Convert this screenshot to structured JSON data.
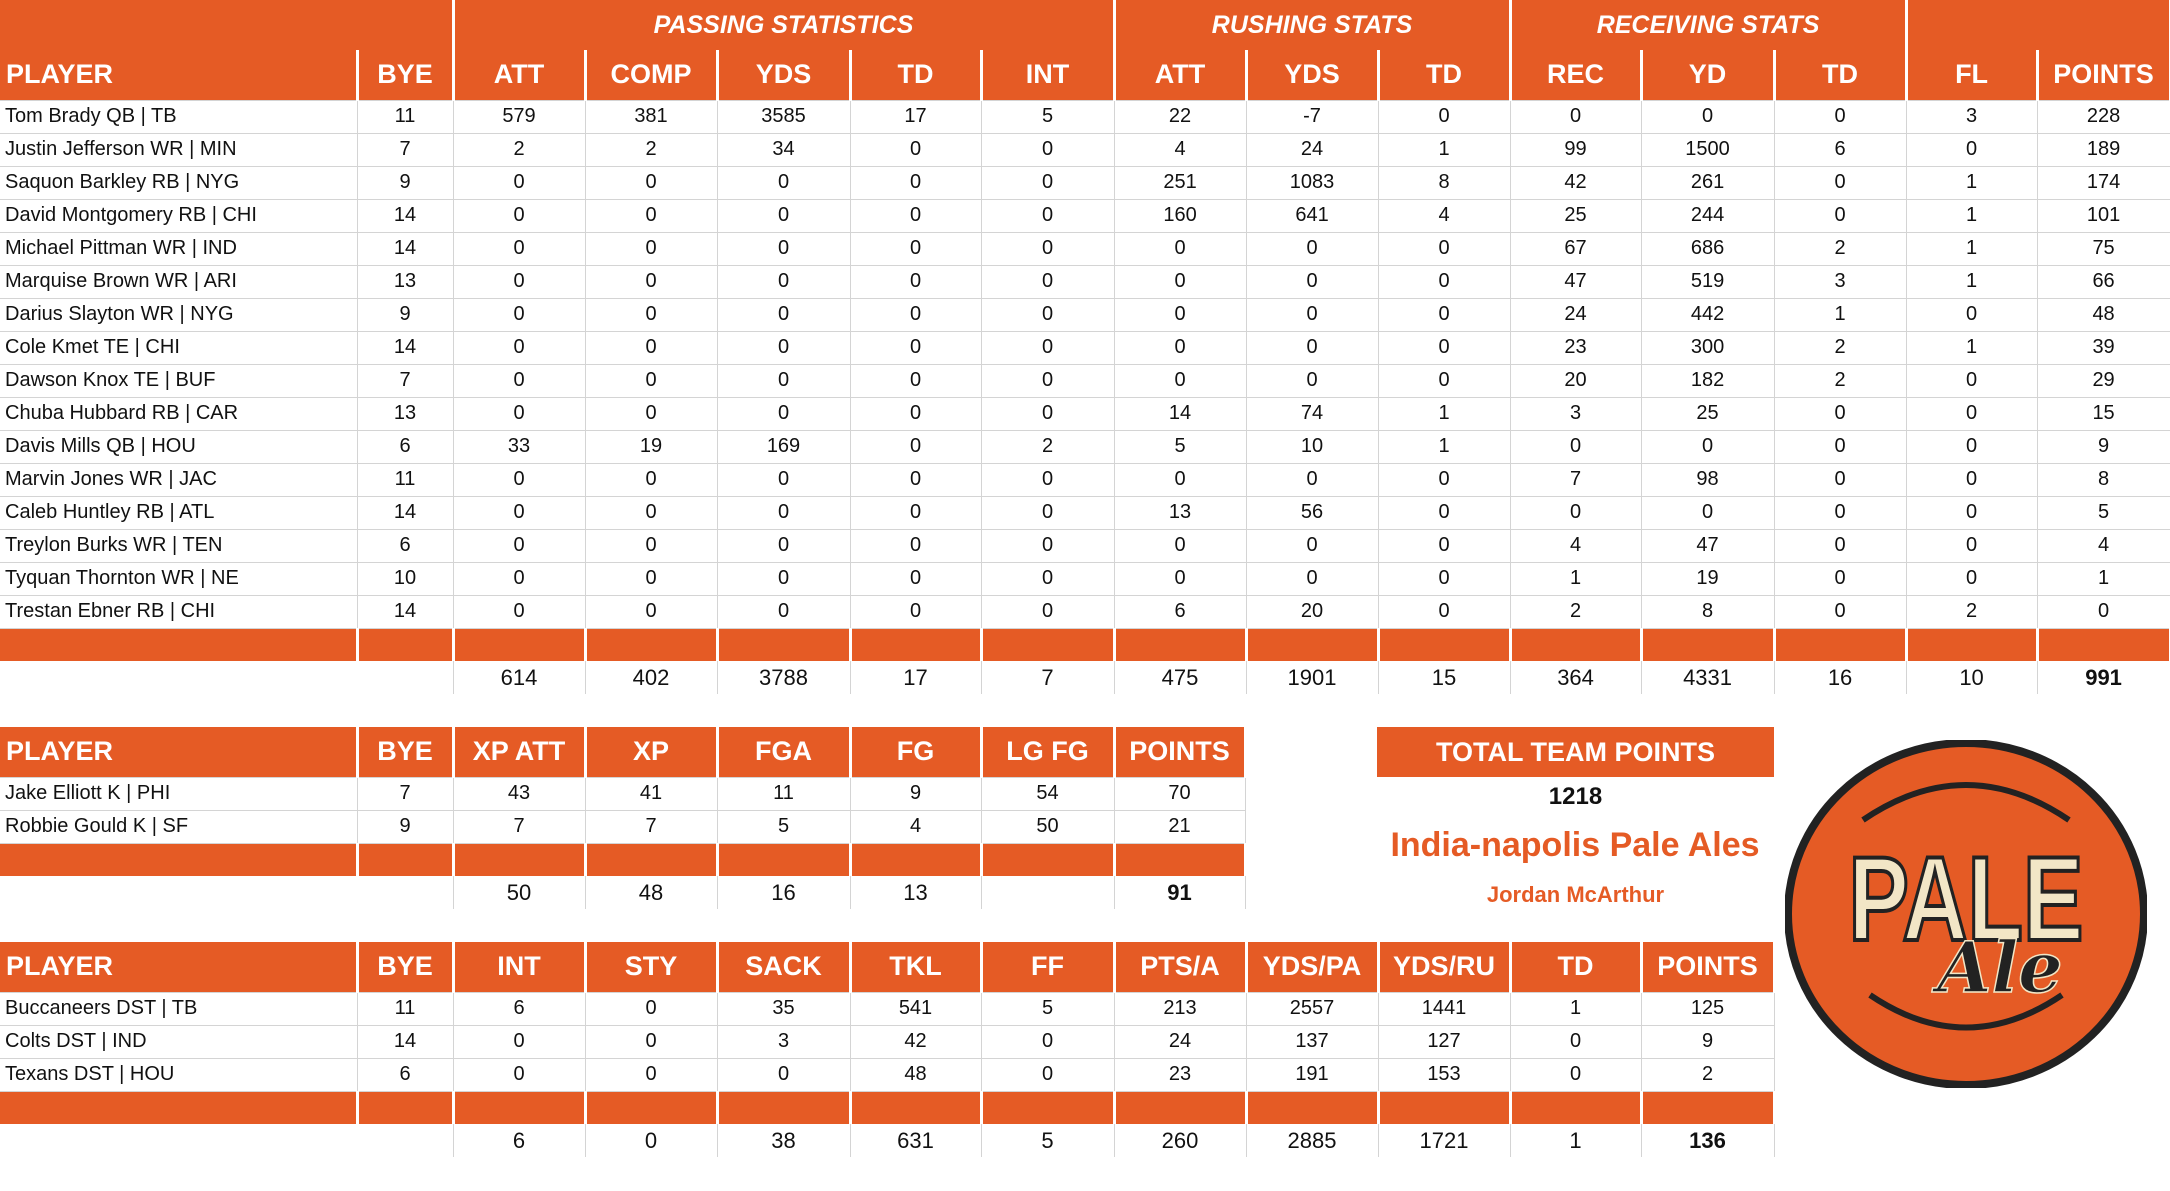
{
  "colors": {
    "accent": "#E55B25",
    "grid": "#d4d4d4",
    "text": "#111111"
  },
  "offense": {
    "groups": [
      {
        "label": "",
        "span": 2
      },
      {
        "label": "PASSING STATISTICS",
        "span": 5
      },
      {
        "label": "RUSHING STATS",
        "span": 3
      },
      {
        "label": "RECEIVING STATS",
        "span": 3
      },
      {
        "label": "",
        "span": 2
      }
    ],
    "columns": [
      "PLAYER",
      "BYE",
      "ATT",
      "COMP",
      "YDS",
      "TD",
      "INT",
      "ATT",
      "YDS",
      "TD",
      "REC",
      "YD",
      "TD",
      "FL",
      "POINTS"
    ],
    "rows": [
      [
        "Tom Brady QB | TB",
        "11",
        "579",
        "381",
        "3585",
        "17",
        "5",
        "22",
        "-7",
        "0",
        "0",
        "0",
        "0",
        "3",
        "228"
      ],
      [
        "Justin Jefferson WR | MIN",
        "7",
        "2",
        "2",
        "34",
        "0",
        "0",
        "4",
        "24",
        "1",
        "99",
        "1500",
        "6",
        "0",
        "189"
      ],
      [
        "Saquon Barkley RB | NYG",
        "9",
        "0",
        "0",
        "0",
        "0",
        "0",
        "251",
        "1083",
        "8",
        "42",
        "261",
        "0",
        "1",
        "174"
      ],
      [
        "David Montgomery RB | CHI",
        "14",
        "0",
        "0",
        "0",
        "0",
        "0",
        "160",
        "641",
        "4",
        "25",
        "244",
        "0",
        "1",
        "101"
      ],
      [
        "Michael Pittman WR | IND",
        "14",
        "0",
        "0",
        "0",
        "0",
        "0",
        "0",
        "0",
        "0",
        "67",
        "686",
        "2",
        "1",
        "75"
      ],
      [
        "Marquise Brown WR | ARI",
        "13",
        "0",
        "0",
        "0",
        "0",
        "0",
        "0",
        "0",
        "0",
        "47",
        "519",
        "3",
        "1",
        "66"
      ],
      [
        "Darius Slayton WR | NYG",
        "9",
        "0",
        "0",
        "0",
        "0",
        "0",
        "0",
        "0",
        "0",
        "24",
        "442",
        "1",
        "0",
        "48"
      ],
      [
        "Cole Kmet TE | CHI",
        "14",
        "0",
        "0",
        "0",
        "0",
        "0",
        "0",
        "0",
        "0",
        "23",
        "300",
        "2",
        "1",
        "39"
      ],
      [
        "Dawson Knox TE | BUF",
        "7",
        "0",
        "0",
        "0",
        "0",
        "0",
        "0",
        "0",
        "0",
        "20",
        "182",
        "2",
        "0",
        "29"
      ],
      [
        "Chuba Hubbard RB | CAR",
        "13",
        "0",
        "0",
        "0",
        "0",
        "0",
        "14",
        "74",
        "1",
        "3",
        "25",
        "0",
        "0",
        "15"
      ],
      [
        "Davis Mills QB | HOU",
        "6",
        "33",
        "19",
        "169",
        "0",
        "2",
        "5",
        "10",
        "1",
        "0",
        "0",
        "0",
        "0",
        "9"
      ],
      [
        "Marvin Jones WR | JAC",
        "11",
        "0",
        "0",
        "0",
        "0",
        "0",
        "0",
        "0",
        "0",
        "7",
        "98",
        "0",
        "0",
        "8"
      ],
      [
        "Caleb Huntley RB | ATL",
        "14",
        "0",
        "0",
        "0",
        "0",
        "0",
        "13",
        "56",
        "0",
        "0",
        "0",
        "0",
        "0",
        "5"
      ],
      [
        "Treylon Burks WR | TEN",
        "6",
        "0",
        "0",
        "0",
        "0",
        "0",
        "0",
        "0",
        "0",
        "4",
        "47",
        "0",
        "0",
        "4"
      ],
      [
        "Tyquan Thornton WR | NE",
        "10",
        "0",
        "0",
        "0",
        "0",
        "0",
        "0",
        "0",
        "0",
        "1",
        "19",
        "0",
        "0",
        "1"
      ],
      [
        "Trestan Ebner RB | CHI",
        "14",
        "0",
        "0",
        "0",
        "0",
        "0",
        "6",
        "20",
        "0",
        "2",
        "8",
        "0",
        "2",
        "0"
      ]
    ],
    "totals": [
      "",
      "",
      "614",
      "402",
      "3788",
      "17",
      "7",
      "475",
      "1901",
      "15",
      "364",
      "4331",
      "16",
      "10",
      "991"
    ]
  },
  "kickers": {
    "columns": [
      "PLAYER",
      "BYE",
      "XP ATT",
      "XP",
      "FGA",
      "FG",
      "LG FG",
      "POINTS"
    ],
    "rows": [
      [
        "Jake Elliott K | PHI",
        "7",
        "43",
        "41",
        "11",
        "9",
        "54",
        "70"
      ],
      [
        "Robbie Gould K | SF",
        "9",
        "7",
        "7",
        "5",
        "4",
        "50",
        "21"
      ]
    ],
    "totals": [
      "",
      "",
      "50",
      "48",
      "16",
      "13",
      "",
      "91"
    ]
  },
  "defense": {
    "columns": [
      "PLAYER",
      "BYE",
      "INT",
      "STY",
      "SACK",
      "TKL",
      "FF",
      "PTS/A",
      "YDS/PA",
      "YDS/RU",
      "TD",
      "POINTS"
    ],
    "rows": [
      [
        "Buccaneers DST | TB",
        "11",
        "6",
        "0",
        "35",
        "541",
        "5",
        "213",
        "2557",
        "1441",
        "1",
        "125"
      ],
      [
        "Colts DST | IND",
        "14",
        "0",
        "0",
        "3",
        "42",
        "0",
        "24",
        "137",
        "127",
        "0",
        "9"
      ],
      [
        "Texans DST | HOU",
        "6",
        "0",
        "0",
        "0",
        "48",
        "0",
        "23",
        "191",
        "153",
        "0",
        "2"
      ]
    ],
    "totals": [
      "",
      "",
      "6",
      "0",
      "38",
      "631",
      "5",
      "260",
      "2885",
      "1721",
      "1",
      "136"
    ]
  },
  "team": {
    "total_label": "TOTAL TEAM POINTS",
    "total_points": "1218",
    "team_name": "India-napolis Pale Ales",
    "owner": "Jordan McArthur"
  },
  "logo": {
    "line1": "PALE",
    "line2": "Ale",
    "icon": "pale-ale-logo"
  }
}
